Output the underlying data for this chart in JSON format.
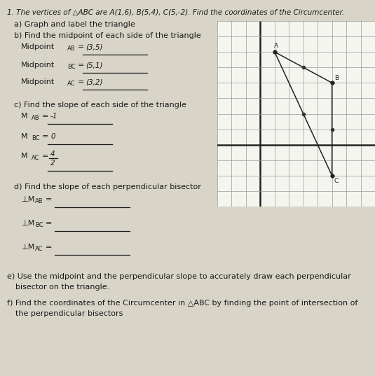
{
  "title": "1. The vertices of △ABC are A(1,6), B(5,4), C(5,-2). Find the coordinates of the Circumcenter.",
  "part_a": "a) Graph and label the triangle",
  "part_b": "b) Find the midpoint of each side of the triangle",
  "part_c": "c) Find the slope of each side of the triangle",
  "part_d": "d) Find the slope of each perpendicular bisector",
  "part_e": "e) Use the midpoint and the perpendicular slope to accurately draw each perpendicular",
  "part_e2": "   bisector on the triangle.",
  "part_f": "f) Find the coordinates of the Circumcenter in △ABC by finding the point of intersection of",
  "part_f2": "   the perpendicular bisectors",
  "A": [
    1,
    6
  ],
  "B": [
    5,
    4
  ],
  "C": [
    5,
    -2
  ],
  "bg_color": "#d8d4c8",
  "grid_bg": "#f5f5f0",
  "text_color": "#1a1a1a",
  "graph_xlim": [
    -3,
    8
  ],
  "graph_ylim": [
    -4,
    8
  ]
}
